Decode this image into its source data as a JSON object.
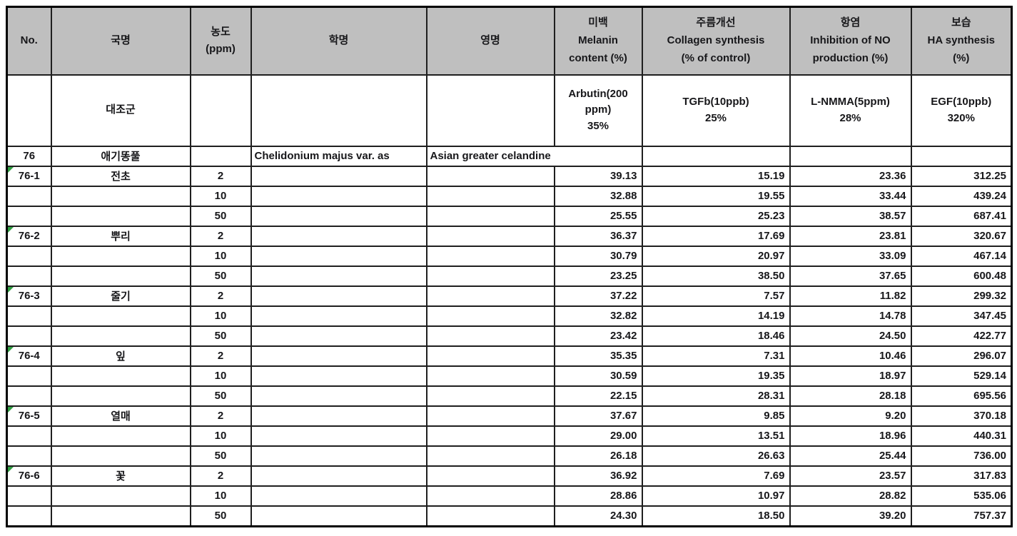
{
  "colors": {
    "header_bg": "#bfbfbf",
    "grid_border": "#1f1f1f",
    "indicator_green": "#2f9e41",
    "text": "#17171a"
  },
  "icons": {
    "error_indicator": "green-corner-triangle"
  },
  "table": {
    "header": {
      "no": "No.",
      "korean_name": "국명",
      "concentration": "농도\n(ppm)",
      "scientific_name": "학명",
      "english_name": "영명",
      "whitening": "미백\nMelanin\ncontent (%)",
      "wrinkle": "주름개선\nCollagen synthesis\n(% of control)",
      "anti_inflammation": "항염\nInhibition of NO\nproduction (%)",
      "moisturizing": "보습\nHA synthesis\n(%)"
    },
    "control_row": {
      "label": "대조군",
      "whitening_reference": "Arbutin(200\nppm)\n35%",
      "wrinkle_reference": "TGFb(10ppb)\n25%",
      "anti_inflammation_reference": "L-NMMA(5ppm)\n28%",
      "moisturizing_reference": "EGF(10ppb)\n320%"
    },
    "species_row": {
      "no": "76",
      "korean_name": "애기똥풀",
      "scientific_name": "Chelidonium majus var. as",
      "english_name": "Asian greater celandine"
    },
    "rows": [
      {
        "no": "76-1",
        "part": "전초",
        "conc": "2",
        "melanin": "39.13",
        "collagen": "15.19",
        "no_inhibition": "23.36",
        "ha": "312.25",
        "flag": true
      },
      {
        "no": "",
        "part": "",
        "conc": "10",
        "melanin": "32.88",
        "collagen": "19.55",
        "no_inhibition": "33.44",
        "ha": "439.24",
        "flag": false
      },
      {
        "no": "",
        "part": "",
        "conc": "50",
        "melanin": "25.55",
        "collagen": "25.23",
        "no_inhibition": "38.57",
        "ha": "687.41",
        "flag": false
      },
      {
        "no": "76-2",
        "part": "뿌리",
        "conc": "2",
        "melanin": "36.37",
        "collagen": "17.69",
        "no_inhibition": "23.81",
        "ha": "320.67",
        "flag": true
      },
      {
        "no": "",
        "part": "",
        "conc": "10",
        "melanin": "30.79",
        "collagen": "20.97",
        "no_inhibition": "33.09",
        "ha": "467.14",
        "flag": false
      },
      {
        "no": "",
        "part": "",
        "conc": "50",
        "melanin": "23.25",
        "collagen": "38.50",
        "no_inhibition": "37.65",
        "ha": "600.48",
        "flag": false
      },
      {
        "no": "76-3",
        "part": "줄기",
        "conc": "2",
        "melanin": "37.22",
        "collagen": "7.57",
        "no_inhibition": "11.82",
        "ha": "299.32",
        "flag": true
      },
      {
        "no": "",
        "part": "",
        "conc": "10",
        "melanin": "32.82",
        "collagen": "14.19",
        "no_inhibition": "14.78",
        "ha": "347.45",
        "flag": false
      },
      {
        "no": "",
        "part": "",
        "conc": "50",
        "melanin": "23.42",
        "collagen": "18.46",
        "no_inhibition": "24.50",
        "ha": "422.77",
        "flag": false
      },
      {
        "no": "76-4",
        "part": "잎",
        "conc": "2",
        "melanin": "35.35",
        "collagen": "7.31",
        "no_inhibition": "10.46",
        "ha": "296.07",
        "flag": true
      },
      {
        "no": "",
        "part": "",
        "conc": "10",
        "melanin": "30.59",
        "collagen": "19.35",
        "no_inhibition": "18.97",
        "ha": "529.14",
        "flag": false
      },
      {
        "no": "",
        "part": "",
        "conc": "50",
        "melanin": "22.15",
        "collagen": "28.31",
        "no_inhibition": "28.18",
        "ha": "695.56",
        "flag": false
      },
      {
        "no": "76-5",
        "part": "열매",
        "conc": "2",
        "melanin": "37.67",
        "collagen": "9.85",
        "no_inhibition": "9.20",
        "ha": "370.18",
        "flag": true
      },
      {
        "no": "",
        "part": "",
        "conc": "10",
        "melanin": "29.00",
        "collagen": "13.51",
        "no_inhibition": "18.96",
        "ha": "440.31",
        "flag": false
      },
      {
        "no": "",
        "part": "",
        "conc": "50",
        "melanin": "26.18",
        "collagen": "26.63",
        "no_inhibition": "25.44",
        "ha": "736.00",
        "flag": false
      },
      {
        "no": "76-6",
        "part": "꽃",
        "conc": "2",
        "melanin": "36.92",
        "collagen": "7.69",
        "no_inhibition": "23.57",
        "ha": "317.83",
        "flag": true
      },
      {
        "no": "",
        "part": "",
        "conc": "10",
        "melanin": "28.86",
        "collagen": "10.97",
        "no_inhibition": "28.82",
        "ha": "535.06",
        "flag": false
      },
      {
        "no": "",
        "part": "",
        "conc": "50",
        "melanin": "24.30",
        "collagen": "18.50",
        "no_inhibition": "39.20",
        "ha": "757.37",
        "flag": false
      }
    ]
  }
}
